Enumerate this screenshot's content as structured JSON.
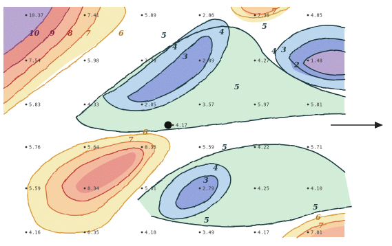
{
  "contour_labels": {
    "c10": "10",
    "c9": "9",
    "c8": "8",
    "c7": "7",
    "c6": "6",
    "c5": "5",
    "c4": "4",
    "c3": "3",
    "c2": "2"
  },
  "stations": [
    "10.37",
    "7.41",
    "5.89",
    "2.86",
    "7.36",
    "4.85",
    "7.54",
    "5.98",
    "3.79",
    "2.89",
    "4.27",
    "1.48",
    "5.83",
    "4.33",
    "2.05",
    "3.57",
    "5.97",
    "5.81",
    "4.17",
    "5.76",
    "5.64",
    "8.35",
    "5.59",
    "4.22",
    "5.71",
    "5.59",
    "8.34",
    "5.61",
    "2.79",
    "4.25",
    "4.10",
    "4.16",
    "6.35",
    "4.18",
    "3.49",
    "4.17",
    "7.01"
  ],
  "colors": {
    "level_10": "#9a7cc0",
    "level_9": "#c9557a",
    "level_8": "#e0604d",
    "level_7": "#ef9a6f",
    "level_6": "#f4c078",
    "level_5": "#f3e59c",
    "level_4": "#bfe5c8",
    "level_3": "#9fc7e8",
    "level_2": "#5a78d2",
    "line_dark": "#1e3b40",
    "line_green": "#1f6b4a"
  },
  "symbols": {
    "saddle_marker": "filled-circle-marker",
    "flow_arrow": "arrow-right-icon"
  }
}
